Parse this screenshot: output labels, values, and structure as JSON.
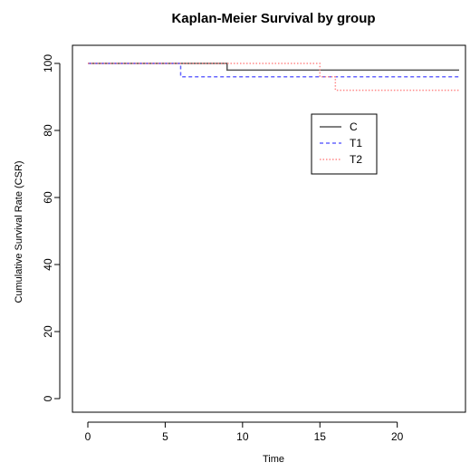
{
  "chart_data": {
    "type": "line",
    "title": "Kaplan-Meier Survival by group",
    "xlabel": "Time",
    "ylabel": "Cumulative Survival Rate (CSR)",
    "xlim": [
      0,
      24
    ],
    "ylim": [
      0,
      100
    ],
    "xticks": [
      0,
      5,
      10,
      15,
      20
    ],
    "yticks": [
      0,
      20,
      40,
      60,
      80,
      100
    ],
    "grid": false,
    "legend_position": "top-right",
    "series": [
      {
        "name": "C",
        "color": "#555555",
        "dash": "solid",
        "step": true,
        "x": [
          0,
          9,
          24
        ],
        "y": [
          100,
          98,
          98
        ]
      },
      {
        "name": "T1",
        "color": "#6666ff",
        "dash": "dashed",
        "step": true,
        "x": [
          0,
          6,
          24
        ],
        "y": [
          100,
          96,
          96
        ]
      },
      {
        "name": "T2",
        "color": "#ff8888",
        "dash": "dotted",
        "step": true,
        "x": [
          0,
          15,
          16,
          24
        ],
        "y": [
          100,
          96,
          92,
          92
        ]
      }
    ]
  }
}
